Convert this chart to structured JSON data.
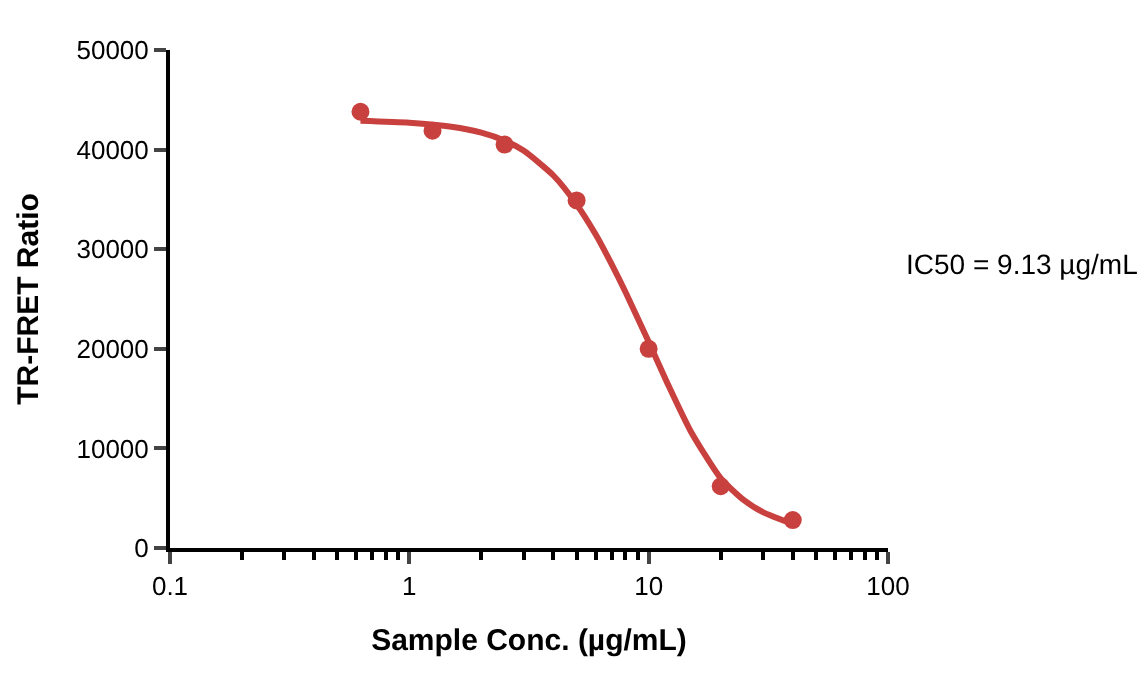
{
  "chart_data": {
    "type": "scatter",
    "xlabel": "Sample Conc. (µg/mL)",
    "ylabel": "TR-FRET Ratio",
    "log": "x",
    "xlim": [
      0.1,
      100
    ],
    "xticks": [
      0.1,
      1,
      10,
      100
    ],
    "ylim": [
      0,
      50000
    ],
    "yticks": [
      0,
      10000,
      20000,
      30000,
      40000,
      50000
    ],
    "marker": "circle",
    "annotations": [
      "IC50 = 9.13 µg/mL"
    ],
    "series": [
      {
        "color": "#c8413f",
        "x": [
          0.625,
          1.25,
          2.5,
          5,
          10,
          20,
          40
        ],
        "values": [
          43800,
          41900,
          40500,
          34900,
          20000,
          6200,
          2800
        ]
      },
      {
        "type": "line",
        "color": "#c8413f",
        "marker": "none",
        "x": [
          0.625,
          1,
          1.5,
          2,
          2.5,
          3,
          4,
          5,
          6,
          7,
          8,
          10,
          12,
          15,
          20,
          25,
          30,
          40
        ],
        "values": [
          42900,
          42700,
          42300,
          41700,
          40900,
          39900,
          37400,
          34500,
          31500,
          28500,
          25700,
          20700,
          16500,
          11700,
          7000,
          4800,
          3600,
          2400
        ]
      }
    ]
  }
}
